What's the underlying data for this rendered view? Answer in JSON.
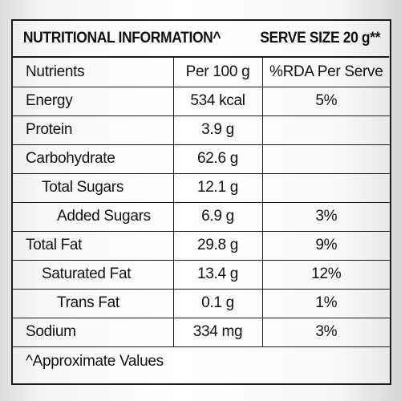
{
  "header": {
    "title": "NUTRITIONAL INFORMATION^",
    "serve_size": "SERVE SIZE 20 g**"
  },
  "table": {
    "columns": [
      "Nutrients",
      "Per 100 g",
      "%RDA Per Serve"
    ],
    "rows": [
      {
        "nutrient": "Energy",
        "per100": "534 kcal",
        "rda": "5%"
      },
      {
        "nutrient": "Protein",
        "per100": "3.9 g",
        "rda": ""
      },
      {
        "nutrient": "Carbohydrate",
        "per100": "62.6 g",
        "rda": ""
      },
      {
        "nutrient": "Total Sugars",
        "per100": "12.1 g",
        "rda": ""
      },
      {
        "nutrient": "Added Sugars",
        "per100": "6.9 g",
        "rda": "3%"
      },
      {
        "nutrient": "Total Fat",
        "per100": "29.8 g",
        "rda": "9%"
      },
      {
        "nutrient": "Saturated Fat",
        "per100": "13.4 g",
        "rda": "12%"
      },
      {
        "nutrient": "Trans Fat",
        "per100": "0.1 g",
        "rda": "1%"
      },
      {
        "nutrient": "Sodium",
        "per100": "334 mg",
        "rda": "3%"
      }
    ]
  },
  "footer": {
    "note": "^Approximate Values"
  }
}
